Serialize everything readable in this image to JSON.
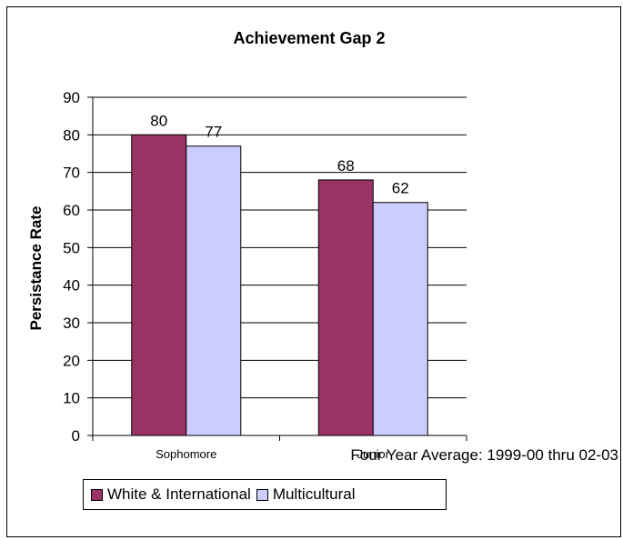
{
  "chart_data": {
    "type": "bar",
    "title": "Achievement Gap 2",
    "xlabel": "",
    "ylabel": "Persistance Rate",
    "subtitle": "Four Year Average: 1999-00 thru 02-03",
    "categories": [
      "Sophomore",
      "Junior"
    ],
    "series": [
      {
        "name": "White & International",
        "values": [
          80,
          68
        ],
        "color": "#993366"
      },
      {
        "name": "Multicultural",
        "values": [
          77,
          62
        ],
        "color": "#ccccff"
      }
    ],
    "ylim": [
      0,
      90
    ],
    "yticks": [
      0,
      10,
      20,
      30,
      40,
      50,
      60,
      70,
      80,
      90
    ],
    "grid": true,
    "legend_position": "bottom"
  }
}
